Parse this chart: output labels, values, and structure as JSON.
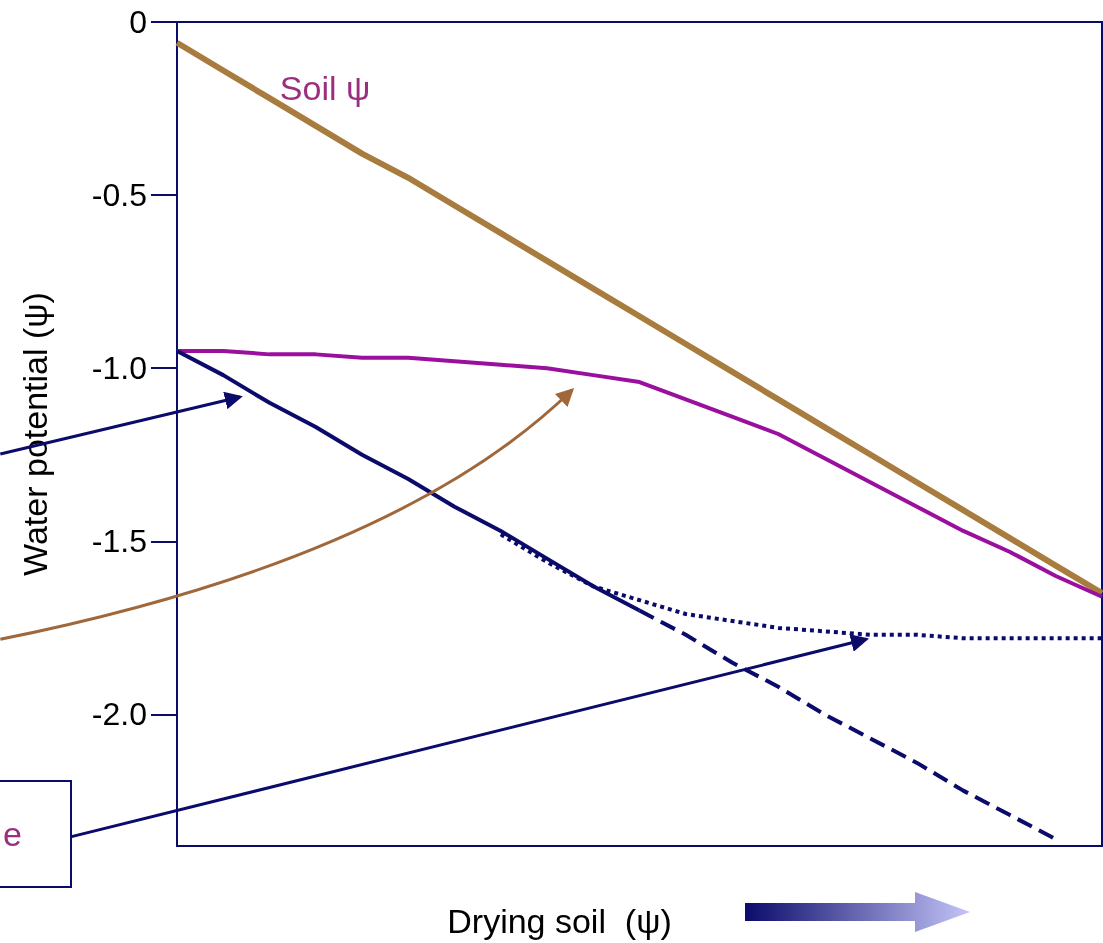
{
  "chart_data": {
    "type": "line",
    "xlabel": "Drying soil  (ψ)",
    "ylabel": "Water potential (ψ)",
    "ylim": [
      -2.38,
      0
    ],
    "categories": [
      null,
      null,
      null,
      null,
      null,
      null,
      null,
      null,
      null,
      null,
      null,
      null,
      null,
      null,
      null,
      null,
      null,
      null,
      null,
      null,
      null
    ],
    "yticks": [
      0,
      {
        "value": -0.5,
        "label": "-0.5"
      },
      {
        "value": -1,
        "label": "-1.0"
      },
      {
        "value": -1.5,
        "label": "-1.5"
      },
      {
        "value": -2,
        "label": "-2.0"
      }
    ],
    "tick_labels": "y",
    "grid": false,
    "marker": "none",
    "series": [
      {
        "color": "#a87b3e",
        "values": [
          -0.06,
          -0.14,
          -0.22,
          -0.3,
          -0.38,
          -0.45,
          -0.53,
          -0.61,
          -0.69,
          -0.77,
          -0.85,
          -0.93,
          -1.01,
          -1.09,
          -1.17,
          -1.25,
          -1.33,
          -1.41,
          -1.49,
          -1.57,
          -1.65
        ]
      },
      {
        "color": "#9b0f9e",
        "values": [
          -0.95,
          -0.95,
          -0.96,
          -0.96,
          -0.97,
          -0.97,
          -0.98,
          -0.99,
          -1.0,
          -1.02,
          -1.04,
          -1.09,
          -1.14,
          -1.19,
          -1.26,
          -1.33,
          -1.4,
          -1.47,
          -1.53,
          -1.6,
          -1.66
        ]
      },
      {
        "color": "#0b0b6b",
        "values": [
          -0.95,
          -1.02,
          -1.1,
          -1.17,
          -1.25,
          -1.32,
          -1.4,
          -1.47,
          -1.55,
          -1.63,
          -1.7,
          null,
          null,
          null,
          null,
          null,
          null,
          null,
          null,
          null,
          null
        ]
      },
      {
        "color": "#0b0b6b",
        "line_style": "dashed",
        "values": [
          null,
          null,
          null,
          null,
          null,
          null,
          null,
          null,
          null,
          null,
          -1.7,
          -1.77,
          -1.85,
          -1.92,
          -2.0,
          -2.07,
          -2.14,
          -2.22,
          -2.29,
          -2.36,
          null
        ]
      },
      {
        "color": "#0b0b6b",
        "line_style": "dotted",
        "values": [
          null,
          null,
          null,
          null,
          null,
          null,
          null,
          -1.48,
          -1.56,
          -1.63,
          -1.67,
          -1.71,
          -1.73,
          -1.75,
          -1.76,
          -1.77,
          -1.77,
          -1.78,
          -1.78,
          -1.78,
          -1.78
        ]
      }
    ],
    "annotations": [
      "Soil ψ",
      "e"
    ]
  }
}
